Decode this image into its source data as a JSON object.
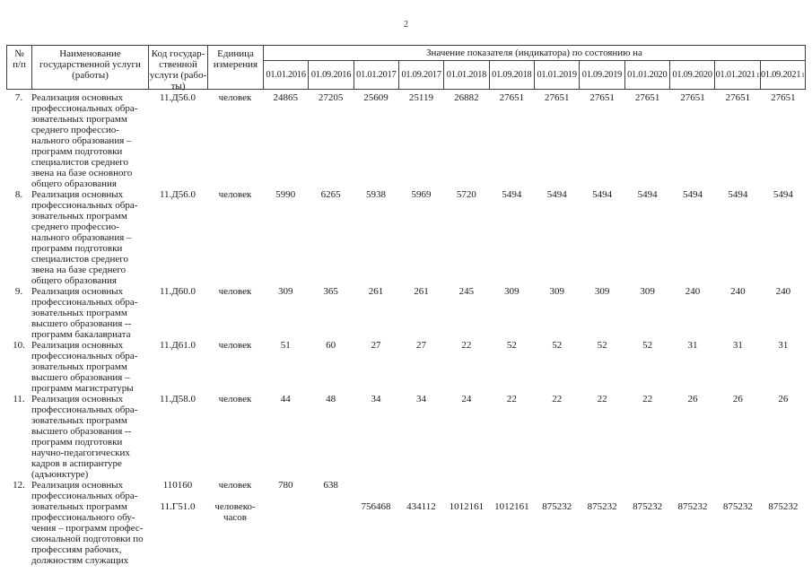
{
  "page": {
    "number": "2"
  },
  "table": {
    "headers": {
      "num": "№\nп/п",
      "name": "Наименование\nгосударственной услуги\n(работы)",
      "code": "Код государ-\nственной\nуслуги (рабо-\nты)",
      "unit": "Единица\nизмерения",
      "values_group": "Значение показателя (индикатора) по состоянию на"
    },
    "date_columns": [
      {
        "label": "01.01.2016",
        "sup": ""
      },
      {
        "label": "01.09.2016",
        "sup": ""
      },
      {
        "label": "01.01.2017",
        "sup": ""
      },
      {
        "label": "01.09.2017",
        "sup": ""
      },
      {
        "label": "01.01.2018",
        "sup": ""
      },
      {
        "label": "01.09.2018",
        "sup": ""
      },
      {
        "label": "01.01.2019",
        "sup": ""
      },
      {
        "label": "01.09.2019",
        "sup": ""
      },
      {
        "label": "01.01.2020",
        "sup": ""
      },
      {
        "label": "01.09.2020",
        "sup": ""
      },
      {
        "label": "01.01.2021",
        "sup": "1"
      },
      {
        "label": "01.09.2021",
        "sup": "1"
      }
    ],
    "rows": [
      {
        "num": "7.",
        "name": "Реализация основных\nпрофессиональных обра-\nзовательных программ\nсреднего профессио-\nнального образования –\nпрограмм подготовки\nспециалистов среднего\nзвена на базе основного\nобщего образования",
        "entries": [
          {
            "code": "11.Д56.0",
            "unit": "человек",
            "values": [
              "24865",
              "27205",
              "25609",
              "25119",
              "26882",
              "27651",
              "27651",
              "27651",
              "27651",
              "27651",
              "27651",
              "27651"
            ]
          }
        ]
      },
      {
        "num": "8.",
        "name": "Реализация основных\nпрофессиональных обра-\nзовательных программ\nсреднего профессио-\nнального образования –\nпрограмм подготовки\nспециалистов среднего\nзвена на базе среднего\nобщего образования",
        "entries": [
          {
            "code": "11.Д56.0",
            "unit": "человек",
            "values": [
              "5990",
              "6265",
              "5938",
              "5969",
              "5720",
              "5494",
              "5494",
              "5494",
              "5494",
              "5494",
              "5494",
              "5494"
            ]
          }
        ]
      },
      {
        "num": "9.",
        "name": "Реализация основных\nпрофессиональных обра-\nзовательных программ\nвысшего образования --\nпрограмм бакалавриата",
        "entries": [
          {
            "code": "11.Д60.0",
            "unit": "человек",
            "values": [
              "309",
              "365",
              "261",
              "261",
              "245",
              "309",
              "309",
              "309",
              "309",
              "240",
              "240",
              "240"
            ]
          }
        ]
      },
      {
        "num": "10.",
        "name": "Реализация основных\nпрофессиональных обра-\nзовательных программ\nвысшего образования –\nпрограмм магистратуры",
        "entries": [
          {
            "code": "11.Д61.0",
            "unit": "человек",
            "values": [
              "51",
              "60",
              "27",
              "27",
              "22",
              "52",
              "52",
              "52",
              "52",
              "31",
              "31",
              "31"
            ]
          }
        ]
      },
      {
        "num": "11.",
        "name": "Реализация основных\nпрофессиональных обра-\nзовательных программ\nвысшего образования --\nпрограмм подготовки\nнаучно-педагогических\nкадров в аспирантуре\n(адъюнктуре)",
        "entries": [
          {
            "code": "11.Д58.0",
            "unit": "человек",
            "values": [
              "44",
              "48",
              "34",
              "34",
              "24",
              "22",
              "22",
              "22",
              "22",
              "26",
              "26",
              "26"
            ]
          }
        ]
      },
      {
        "num": "12.",
        "name": "Реализация основных\nпрофессиональных обра-\nзовательных программ\nпрофессионального обу-\nчения – программ профес-\nсиональной подготовки по\nпрофессиям рабочих,\nдолжностям служащих",
        "entries": [
          {
            "code": "110160",
            "unit": "человек",
            "values": [
              "780",
              "638",
              "",
              "",
              "",
              "",
              "",
              "",
              "",
              "",
              "",
              ""
            ]
          },
          {
            "code": "11.Г51.0",
            "unit": "человеко-\nчасов",
            "values": [
              "",
              "",
              "756468",
              "434112",
              "1012161",
              "1012161",
              "875232",
              "875232",
              "875232",
              "875232",
              "875232",
              "875232"
            ]
          }
        ]
      }
    ]
  }
}
